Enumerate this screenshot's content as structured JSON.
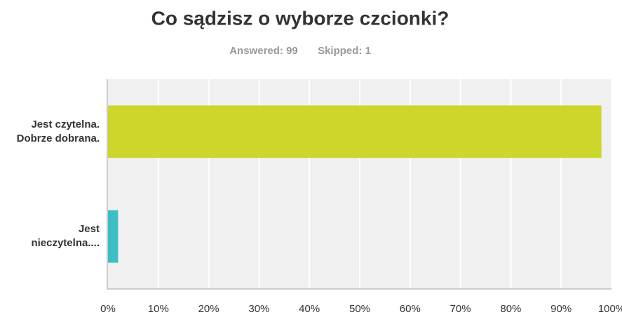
{
  "chart_data": {
    "type": "hbar",
    "title": "Co sądzisz o wyborze czcionki?",
    "subtitle": [
      "Answered: 99",
      "Skipped: 1"
    ],
    "categories": [
      "Jest czytelna. Dobrze dobrana.",
      "Jest nieczytelna...."
    ],
    "values": [
      98,
      2
    ],
    "colors": [
      "#cdd62a",
      "#3bbfc4"
    ],
    "xlim": [
      0,
      100
    ],
    "xticks": [
      {
        "value": 0,
        "label": "0%"
      },
      {
        "value": 10,
        "label": "10%"
      },
      {
        "value": 20,
        "label": "20%"
      },
      {
        "value": 30,
        "label": "30%"
      },
      {
        "value": 40,
        "label": "40%"
      },
      {
        "value": 50,
        "label": "50%"
      },
      {
        "value": 60,
        "label": "60%"
      },
      {
        "value": 70,
        "label": "70%"
      },
      {
        "value": 80,
        "label": "80%"
      },
      {
        "value": 90,
        "label": "90%"
      },
      {
        "value": 100,
        "label": "100%"
      }
    ],
    "grid": true
  }
}
